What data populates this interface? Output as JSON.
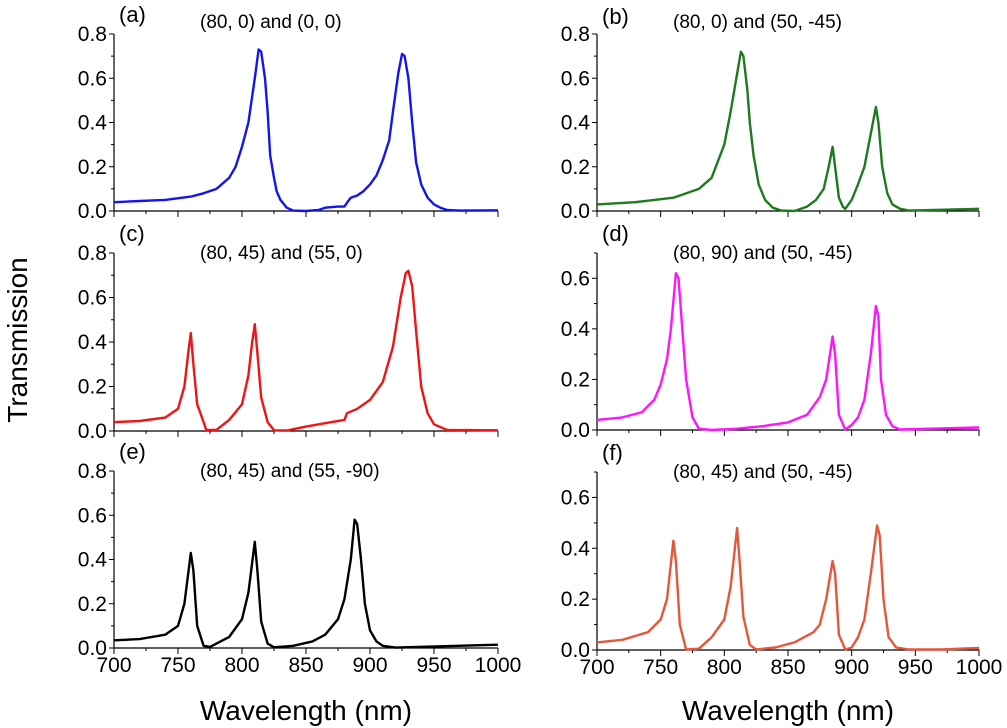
{
  "chart_data": [
    {
      "type": "line",
      "panel_label": "(a)",
      "title": "(80, 0) and (0, 0)",
      "color": "#1414f0",
      "xlim": [
        700,
        1000
      ],
      "ylim": [
        0,
        0.8
      ],
      "yticks": [
        0.0,
        0.2,
        0.4,
        0.6,
        0.8
      ],
      "show_xticklabels": false,
      "x": [
        700,
        720,
        740,
        760,
        770,
        780,
        790,
        795,
        800,
        805,
        810,
        813,
        815,
        818,
        820,
        822,
        825,
        827,
        830,
        835,
        840,
        850,
        860,
        865,
        875,
        880,
        883,
        885,
        890,
        895,
        900,
        905,
        910,
        915,
        918,
        922,
        925,
        927,
        930,
        933,
        936,
        940,
        945,
        950,
        955,
        960,
        970,
        1000
      ],
      "y": [
        0.04,
        0.045,
        0.05,
        0.065,
        0.08,
        0.1,
        0.15,
        0.2,
        0.29,
        0.4,
        0.6,
        0.73,
        0.72,
        0.6,
        0.45,
        0.25,
        0.15,
        0.09,
        0.05,
        0.015,
        0.002,
        0,
        0.005,
        0.015,
        0.02,
        0.02,
        0.045,
        0.06,
        0.07,
        0.09,
        0.12,
        0.16,
        0.23,
        0.32,
        0.45,
        0.62,
        0.71,
        0.7,
        0.6,
        0.4,
        0.22,
        0.12,
        0.06,
        0.03,
        0.015,
        0.005,
        0.002,
        0.003
      ]
    },
    {
      "type": "line",
      "panel_label": "(b)",
      "title": "(80, 0) and (50, -45)",
      "color": "#1f7a1f",
      "xlim": [
        700,
        1000
      ],
      "ylim": [
        0,
        0.8
      ],
      "yticks": [
        0.0,
        0.2,
        0.4,
        0.6,
        0.8
      ],
      "show_xticklabels": false,
      "x": [
        700,
        730,
        760,
        780,
        790,
        800,
        805,
        810,
        813,
        815,
        818,
        820,
        823,
        827,
        832,
        838,
        845,
        855,
        865,
        872,
        878,
        882,
        885,
        887,
        890,
        893,
        895,
        900,
        905,
        910,
        915,
        919,
        921,
        924,
        928,
        932,
        938,
        945,
        1000
      ],
      "y": [
        0.03,
        0.04,
        0.06,
        0.1,
        0.15,
        0.3,
        0.45,
        0.62,
        0.72,
        0.7,
        0.55,
        0.4,
        0.25,
        0.12,
        0.05,
        0.015,
        0.002,
        0,
        0.02,
        0.05,
        0.1,
        0.2,
        0.29,
        0.2,
        0.06,
        0.02,
        0.01,
        0.05,
        0.12,
        0.2,
        0.35,
        0.47,
        0.4,
        0.2,
        0.08,
        0.03,
        0.01,
        0.002,
        0.01
      ]
    },
    {
      "type": "line",
      "panel_label": "(c)",
      "title": "(80, 45) and (55, 0)",
      "color": "#f01414",
      "xlim": [
        700,
        1000
      ],
      "ylim": [
        0,
        0.8
      ],
      "yticks": [
        0.0,
        0.2,
        0.4,
        0.6,
        0.8
      ],
      "show_xticklabels": false,
      "x": [
        700,
        720,
        740,
        750,
        755,
        758,
        760,
        762,
        765,
        770,
        772,
        780,
        790,
        800,
        805,
        808,
        810,
        812,
        815,
        820,
        825,
        835,
        850,
        870,
        880,
        882,
        890,
        900,
        910,
        918,
        924,
        928,
        930,
        933,
        936,
        940,
        945,
        950,
        960,
        1000
      ],
      "y": [
        0.04,
        0.045,
        0.06,
        0.1,
        0.2,
        0.35,
        0.44,
        0.3,
        0.12,
        0.04,
        0.005,
        0.005,
        0.05,
        0.12,
        0.25,
        0.4,
        0.48,
        0.35,
        0.15,
        0.04,
        0.003,
        0.002,
        0.02,
        0.04,
        0.05,
        0.08,
        0.1,
        0.14,
        0.22,
        0.38,
        0.6,
        0.71,
        0.72,
        0.65,
        0.45,
        0.2,
        0.08,
        0.03,
        0.005,
        0.003
      ]
    },
    {
      "type": "line",
      "panel_label": "(d)",
      "title": "(80, 90) and (50, -45)",
      "color": "#ff14ff",
      "xlim": [
        700,
        1000
      ],
      "ylim": [
        0,
        0.7
      ],
      "yticks": [
        0.0,
        0.2,
        0.4,
        0.6
      ],
      "show_xticklabels": false,
      "x": [
        700,
        720,
        735,
        745,
        750,
        755,
        758,
        762,
        764,
        767,
        770,
        775,
        780,
        790,
        810,
        830,
        850,
        865,
        875,
        880,
        885,
        887,
        890,
        895,
        900,
        905,
        910,
        915,
        919,
        921,
        923,
        927,
        932,
        938,
        1000
      ],
      "y": [
        0.04,
        0.05,
        0.07,
        0.12,
        0.18,
        0.28,
        0.4,
        0.62,
        0.6,
        0.4,
        0.2,
        0.05,
        0.005,
        0,
        0.005,
        0.015,
        0.03,
        0.06,
        0.13,
        0.2,
        0.37,
        0.3,
        0.06,
        0.002,
        0.02,
        0.05,
        0.12,
        0.3,
        0.49,
        0.45,
        0.2,
        0.06,
        0.015,
        0.002,
        0.01
      ]
    },
    {
      "type": "line",
      "panel_label": "(e)",
      "title": "(80, 45) and (55, -90)",
      "color": "#000000",
      "xlim": [
        700,
        1000
      ],
      "ylim": [
        0,
        0.8
      ],
      "yticks": [
        0.0,
        0.2,
        0.4,
        0.6,
        0.8
      ],
      "show_xticklabels": true,
      "x": [
        700,
        720,
        740,
        750,
        755,
        760,
        762,
        765,
        770,
        775,
        790,
        800,
        805,
        810,
        812,
        815,
        820,
        825,
        840,
        855,
        865,
        875,
        880,
        885,
        888,
        890,
        893,
        896,
        900,
        905,
        910,
        920,
        1000
      ],
      "y": [
        0.035,
        0.04,
        0.06,
        0.1,
        0.2,
        0.43,
        0.35,
        0.1,
        0.01,
        0.005,
        0.05,
        0.13,
        0.25,
        0.48,
        0.35,
        0.12,
        0.02,
        0.003,
        0.01,
        0.03,
        0.06,
        0.13,
        0.22,
        0.4,
        0.58,
        0.56,
        0.4,
        0.2,
        0.08,
        0.03,
        0.01,
        0.002,
        0.015
      ]
    },
    {
      "type": "line",
      "panel_label": "(f)",
      "title": "(80, 45) and (50, -45)",
      "color": "#e4573a",
      "xlim": [
        700,
        1000
      ],
      "ylim": [
        0,
        0.7
      ],
      "yticks": [
        0.0,
        0.2,
        0.4,
        0.6
      ],
      "show_xticklabels": true,
      "x": [
        700,
        720,
        740,
        750,
        755,
        760,
        762,
        765,
        770,
        780,
        790,
        800,
        805,
        810,
        812,
        815,
        820,
        825,
        840,
        855,
        870,
        875,
        880,
        885,
        887,
        890,
        895,
        900,
        905,
        910,
        915,
        920,
        922,
        925,
        929,
        935,
        945,
        970,
        1000
      ],
      "y": [
        0.03,
        0.04,
        0.07,
        0.12,
        0.2,
        0.43,
        0.35,
        0.1,
        0.002,
        0.005,
        0.05,
        0.12,
        0.25,
        0.48,
        0.35,
        0.13,
        0.02,
        0.002,
        0.01,
        0.03,
        0.07,
        0.1,
        0.2,
        0.35,
        0.3,
        0.06,
        0.002,
        0.01,
        0.05,
        0.12,
        0.3,
        0.49,
        0.45,
        0.2,
        0.05,
        0.01,
        0.002,
        0.002,
        0.008
      ]
    }
  ],
  "xticks": [
    700,
    750,
    800,
    850,
    900,
    950,
    1000
  ],
  "ylabel": "Transmission",
  "xlabel": "Wavelength (nm)"
}
